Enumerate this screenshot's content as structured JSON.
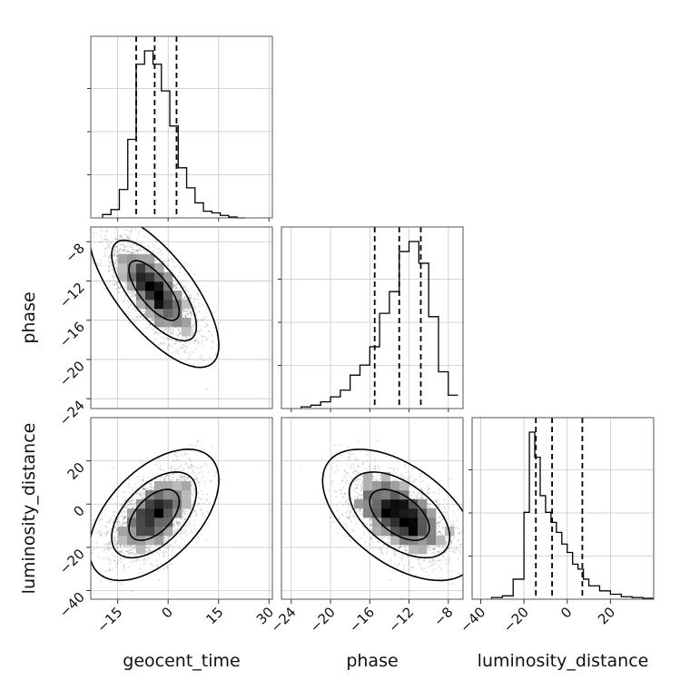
{
  "chart_data": {
    "type": "corner",
    "parameters": [
      "geocent_time",
      "phase",
      "luminosity_distance"
    ],
    "axis_labels": [
      "geocent_time",
      "phase",
      "luminosity_distance"
    ],
    "ranges": {
      "geocent_time": [
        -23,
        31
      ],
      "phase": [
        -25,
        -6.5
      ],
      "luminosity_distance": [
        -44,
        40
      ]
    },
    "ticks": {
      "geocent_time": {
        "values": [
          -15,
          0,
          15,
          30
        ],
        "labels": [
          "−15",
          "0",
          "15",
          "30"
        ]
      },
      "phase": {
        "values": [
          -24,
          -20,
          -16,
          -12,
          -8
        ],
        "labels": [
          "−24",
          "−20",
          "−16",
          "−12",
          "−8"
        ]
      },
      "luminosity_distance": {
        "values": [
          -40,
          -20,
          0,
          20
        ],
        "labels": [
          "−40",
          "−20",
          "0",
          "20"
        ]
      }
    },
    "quantiles": {
      "geocent_time": [
        -9.5,
        -4,
        2.5
      ],
      "phase": [
        -15.5,
        -13,
        -10.8
      ],
      "luminosity_distance": [
        -14.5,
        -7,
        7
      ]
    },
    "histograms": {
      "geocent_time": {
        "bin_edges": [
          -19.5,
          -17,
          -14.5,
          -12,
          -9.5,
          -7,
          -4.5,
          -2,
          0.5,
          3,
          5.5,
          8,
          10.5,
          13,
          15.5,
          18,
          20.5,
          23
        ],
        "counts": [
          0.02,
          0.05,
          0.17,
          0.47,
          0.92,
          1.0,
          0.92,
          0.76,
          0.55,
          0.3,
          0.18,
          0.09,
          0.04,
          0.03,
          0.015,
          0.005,
          0.0
        ]
      },
      "phase": {
        "bin_edges": [
          -23,
          -22,
          -21,
          -20,
          -19,
          -18,
          -17,
          -16,
          -15,
          -14,
          -13,
          -12,
          -11,
          -10,
          -9,
          -8,
          -7
        ],
        "counts": [
          0.01,
          0.02,
          0.04,
          0.07,
          0.11,
          0.2,
          0.26,
          0.37,
          0.57,
          0.7,
          0.94,
          1.0,
          0.87,
          0.55,
          0.22,
          0.08
        ]
      },
      "luminosity_distance": {
        "bin_edges": [
          -35,
          -30,
          -25,
          -20,
          -17.5,
          -15,
          -12.5,
          -10,
          -7.5,
          -5,
          -2.5,
          0,
          2.5,
          5,
          7.5,
          10,
          15,
          20,
          25,
          30,
          35,
          40
        ],
        "counts": [
          0.01,
          0.02,
          0.12,
          0.52,
          1.0,
          0.85,
          0.62,
          0.52,
          0.46,
          0.4,
          0.33,
          0.28,
          0.21,
          0.18,
          0.12,
          0.08,
          0.05,
          0.03,
          0.015,
          0.01,
          0.005
        ]
      }
    },
    "scatter_samples": {
      "geocent_time": {
        "mean": -4,
        "std": 6.5
      },
      "phase": {
        "mean": -13,
        "std": 2.6
      },
      "luminosity_distance": {
        "mean": -5,
        "std": 10
      },
      "correlations": {
        "phase_vs_geocent_time": -0.72,
        "luminosity_distance_vs_geocent_time": 0.55,
        "luminosity_distance_vs_phase": -0.45
      }
    },
    "contour_levels": [
      0.5,
      0.86,
      0.99
    ],
    "grid": true
  }
}
